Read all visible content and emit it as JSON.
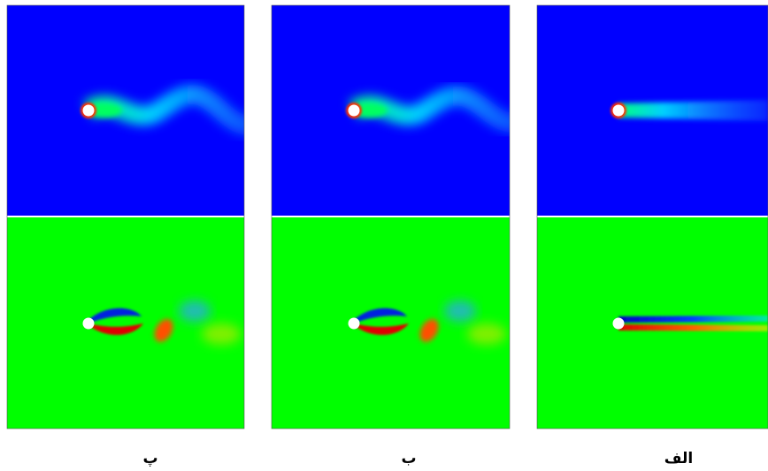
{
  "panels": [
    {
      "label": "پ"
    },
    {
      "label": "ب"
    },
    {
      "label": "الف"
    }
  ]
}
